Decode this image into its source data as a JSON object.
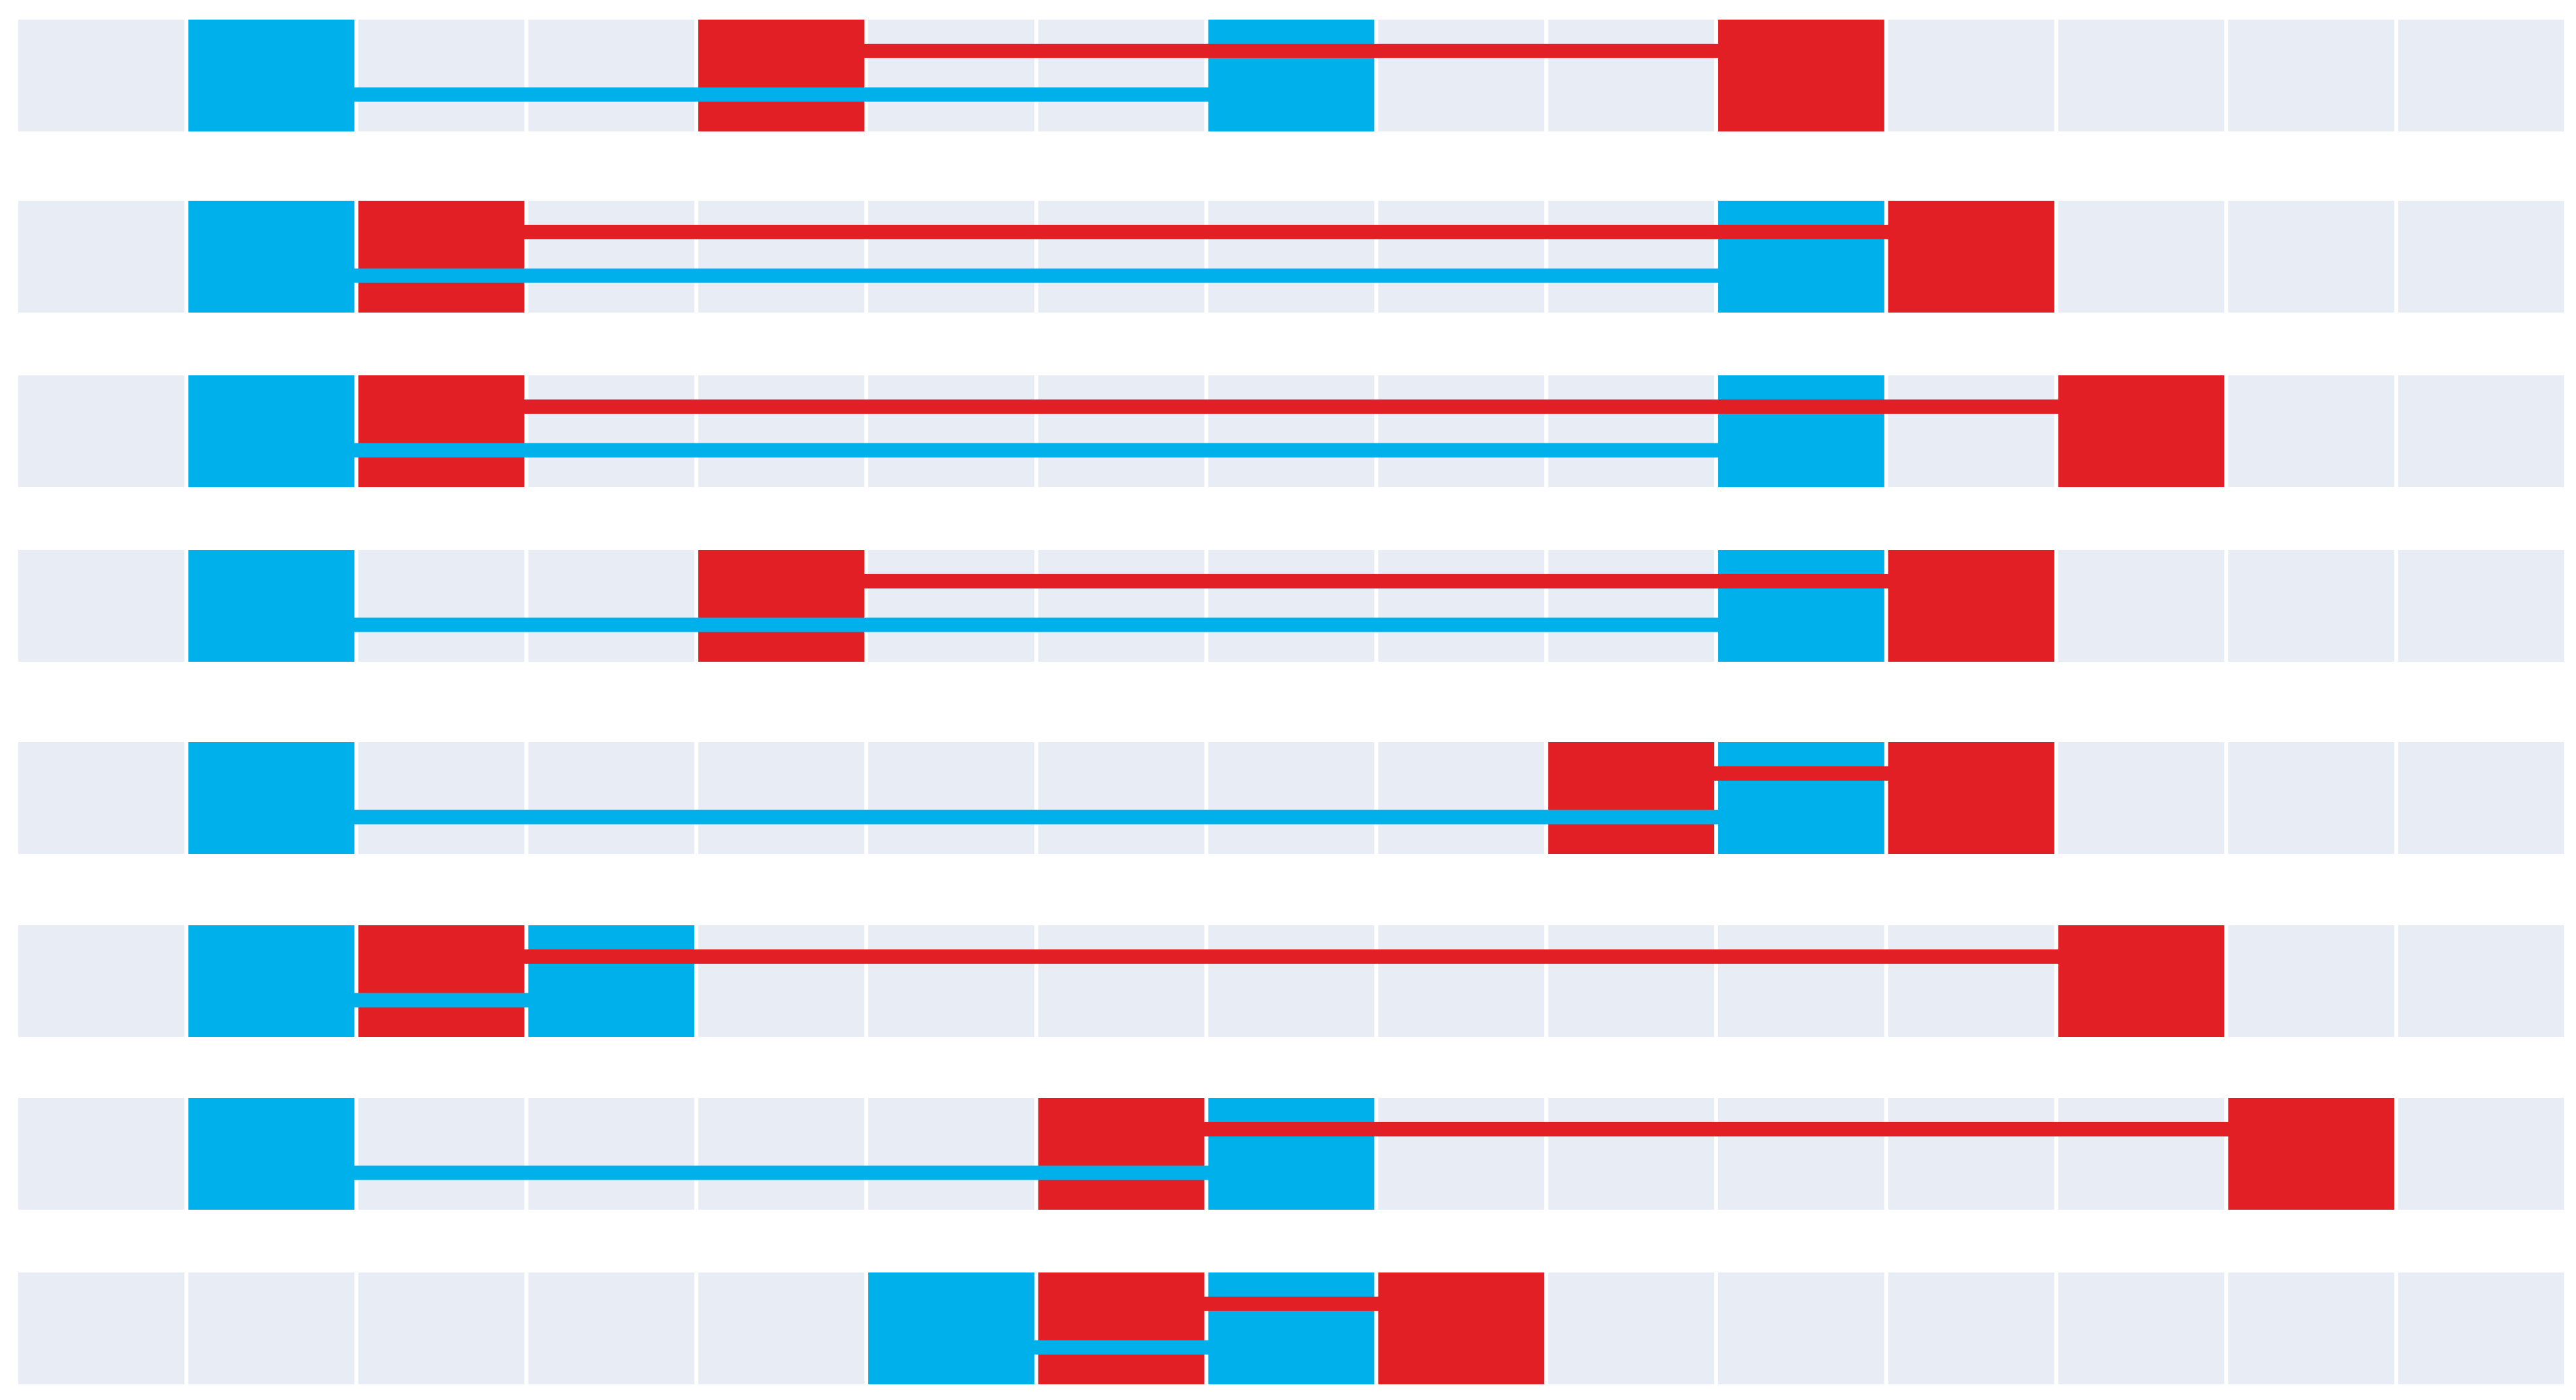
{
  "chart_data": {
    "type": "range",
    "columns": 15,
    "background": "#e8ecf5",
    "series": [
      {
        "color": "#00b0eb",
        "values": [
          [
            1,
            7
          ],
          [
            1,
            10
          ],
          [
            1,
            10
          ],
          [
            1,
            10
          ],
          [
            1,
            10
          ],
          [
            1,
            3
          ],
          [
            1,
            7
          ],
          [
            5,
            7
          ]
        ]
      },
      {
        "color": "#e31f26",
        "values": [
          [
            4,
            10
          ],
          [
            2,
            11
          ],
          [
            2,
            12
          ],
          [
            4,
            11
          ],
          [
            9,
            11
          ],
          [
            2,
            12
          ],
          [
            6,
            13
          ],
          [
            6,
            8
          ]
        ]
      }
    ]
  }
}
